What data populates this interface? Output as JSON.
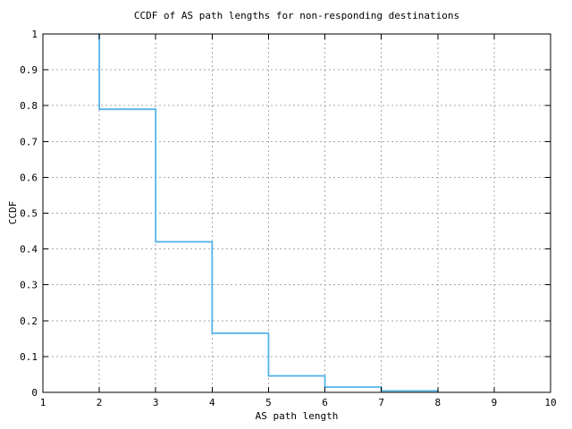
{
  "page": {
    "background": "#ffffff",
    "text_color": "#000000"
  },
  "chart_data": {
    "type": "line",
    "subtype": "step-ccdf",
    "title": "CCDF of AS path lengths for non-responding destinations",
    "xlabel": "AS path length",
    "ylabel": "CCDF",
    "xlim": [
      1,
      10
    ],
    "ylim": [
      0,
      1
    ],
    "x_tick_labels": [
      "1",
      "2",
      "3",
      "4",
      "5",
      "6",
      "7",
      "8",
      "9",
      "10"
    ],
    "y_tick_labels": [
      "0",
      "0.1",
      "0.2",
      "0.3",
      "0.4",
      "0.5",
      "0.6",
      "0.7",
      "0.8",
      "0.9",
      "1"
    ],
    "grid": true,
    "grid_style": "dashed",
    "legend": "none",
    "line_color": "#56b4e9",
    "grid_color": "#a6a6a6",
    "axis_color": "#000000",
    "series": [
      {
        "name": "CCDF of AS path length",
        "x": [
          1,
          2,
          3,
          4,
          5,
          6,
          7,
          8
        ],
        "y": [
          1.0,
          0.79,
          0.42,
          0.165,
          0.046,
          0.015,
          0.004,
          0.0
        ]
      }
    ],
    "step_points": [
      [
        2,
        1.0
      ],
      [
        2,
        0.79
      ],
      [
        3,
        0.79
      ],
      [
        3,
        0.42
      ],
      [
        4,
        0.42
      ],
      [
        4,
        0.165
      ],
      [
        5,
        0.165
      ],
      [
        5,
        0.046
      ],
      [
        6,
        0.046
      ],
      [
        6,
        0.015
      ],
      [
        7,
        0.015
      ],
      [
        7,
        0.004
      ],
      [
        8,
        0.004
      ],
      [
        8,
        0.0
      ]
    ]
  }
}
